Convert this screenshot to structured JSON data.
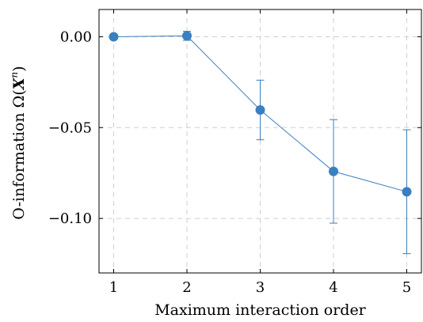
{
  "chart_data": {
    "type": "line",
    "xlabel": "Maximum interaction order",
    "ylabel_prefix": "O-information Ω(",
    "ylabel_var": "X",
    "ylabel_sup": "n",
    "ylabel_suffix": ")",
    "xlim": [
      0.8,
      5.2
    ],
    "ylim": [
      -0.13,
      0.015
    ],
    "x_ticks": [
      1,
      2,
      3,
      4,
      5
    ],
    "x_tick_labels": [
      "1",
      "2",
      "3",
      "4",
      "5"
    ],
    "y_ticks": [
      0.0,
      -0.05,
      -0.1
    ],
    "y_tick_labels": [
      "0.00",
      "−0.05",
      "−0.10"
    ],
    "grid": true,
    "grid_style": "dashed",
    "series": [
      {
        "x": [
          1,
          2,
          3,
          4,
          5
        ],
        "y": [
          0.0,
          0.0005,
          -0.0403,
          -0.0741,
          -0.0853
        ],
        "err_low": [
          0.0,
          0.0025,
          0.0164,
          0.0285,
          0.0341
        ],
        "err_high": [
          0.0,
          0.0025,
          0.0164,
          0.0285,
          0.0341
        ],
        "color": "#3a7fbf"
      }
    ]
  }
}
